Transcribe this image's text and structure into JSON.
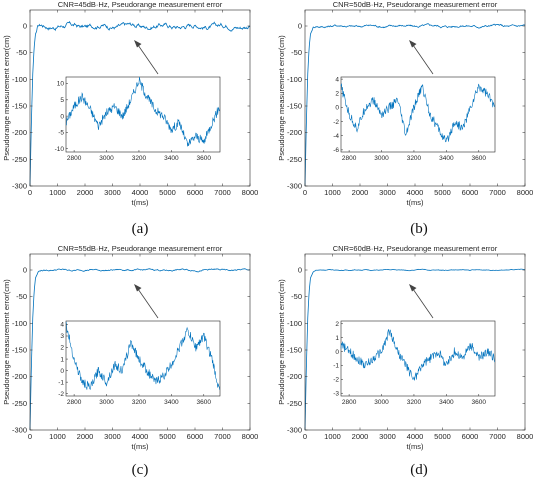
{
  "colors": {
    "series": "#0072BD",
    "axis": "#262626",
    "arrow": "#444444",
    "background": "#ffffff"
  },
  "panels": [
    {
      "caption": "(a)",
      "chart_data": {
        "type": "line",
        "title": "CNR=45dB·Hz, Pseudorange measurement error",
        "xlabel": "t(ms)",
        "ylabel": "Pseudorange measurement error(cm)",
        "xlim": [
          0,
          8000
        ],
        "ylim": [
          -300,
          30
        ],
        "xticks": [
          0,
          1000,
          2000,
          3000,
          4000,
          5000,
          6000,
          7000,
          8000
        ],
        "yticks": [
          -300,
          -250,
          -200,
          -150,
          -100,
          -50,
          0
        ],
        "grid": false,
        "transient": {
          "x": [
            0,
            50,
            100,
            150,
            200,
            300,
            400
          ],
          "y": [
            -300,
            -180,
            -90,
            -40,
            -15,
            -3,
            0
          ]
        },
        "steady_state_noise_amplitude_cm": 6,
        "inset": {
          "xlim": [
            2750,
            3700
          ],
          "ylim": [
            -11,
            12
          ],
          "xticks": [
            2800,
            3000,
            3200,
            3400,
            3600
          ],
          "yticks": [
            -10,
            -5,
            0,
            5,
            10
          ],
          "x": [
            2750,
            2800,
            2850,
            2900,
            2950,
            3000,
            3050,
            3100,
            3150,
            3200,
            3250,
            3300,
            3350,
            3400,
            3450,
            3500,
            3550,
            3600,
            3650,
            3700
          ],
          "y": [
            -2,
            3,
            6,
            2,
            -3,
            1,
            3,
            0,
            5,
            11,
            6,
            2,
            0,
            -4,
            -2,
            -9,
            -6,
            -8,
            -2,
            3
          ]
        }
      }
    },
    {
      "caption": "(b)",
      "chart_data": {
        "type": "line",
        "title": "CNR=50dB·Hz, Pseudorange measurement error",
        "xlabel": "t(ms)",
        "ylabel": "Pseudorange measurement error(cm)",
        "xlim": [
          0,
          8000
        ],
        "ylim": [
          -300,
          30
        ],
        "xticks": [
          0,
          1000,
          2000,
          3000,
          4000,
          5000,
          6000,
          7000,
          8000
        ],
        "yticks": [
          -300,
          -250,
          -200,
          -150,
          -100,
          -50,
          0
        ],
        "grid": false,
        "transient": {
          "x": [
            0,
            50,
            100,
            150,
            200,
            300,
            400
          ],
          "y": [
            -300,
            -180,
            -90,
            -40,
            -15,
            -3,
            0
          ]
        },
        "steady_state_noise_amplitude_cm": 3,
        "inset": {
          "xlim": [
            2750,
            3700
          ],
          "ylim": [
            -6.3,
            4.3
          ],
          "xticks": [
            2800,
            3000,
            3200,
            3400,
            3600
          ],
          "yticks": [
            -6,
            -4,
            -2,
            0,
            2,
            4
          ],
          "x": [
            2750,
            2800,
            2850,
            2900,
            2950,
            3000,
            3050,
            3100,
            3150,
            3200,
            3250,
            3300,
            3350,
            3400,
            3450,
            3500,
            3550,
            3600,
            3650,
            3700
          ],
          "y": [
            3,
            -1,
            -3,
            0,
            1,
            -1,
            0,
            1,
            -4,
            0,
            3,
            -1,
            -3,
            -5,
            -2,
            -3,
            0,
            3,
            2,
            0
          ]
        }
      }
    },
    {
      "caption": "(c)",
      "chart_data": {
        "type": "line",
        "title": "CNR=55dB·Hz, Pseudorange measurement error",
        "xlabel": "t(ms)",
        "ylabel": "Pseudorange measurement error(cm)",
        "xlim": [
          0,
          8000
        ],
        "ylim": [
          -300,
          30
        ],
        "xticks": [
          0,
          1000,
          2000,
          3000,
          4000,
          5000,
          6000,
          7000,
          8000
        ],
        "yticks": [
          -300,
          -250,
          -200,
          -150,
          -100,
          -50,
          0
        ],
        "grid": false,
        "transient": {
          "x": [
            0,
            50,
            100,
            150,
            200,
            300,
            400
          ],
          "y": [
            -300,
            -180,
            -90,
            -40,
            -15,
            -3,
            0
          ]
        },
        "steady_state_noise_amplitude_cm": 2,
        "inset": {
          "xlim": [
            2750,
            3700
          ],
          "ylim": [
            -2.2,
            4.3
          ],
          "xticks": [
            2800,
            3000,
            3200,
            3400,
            3600
          ],
          "yticks": [
            -2,
            -1,
            0,
            1,
            2,
            3,
            4
          ],
          "x": [
            2750,
            2800,
            2850,
            2900,
            2950,
            3000,
            3050,
            3100,
            3150,
            3200,
            3250,
            3300,
            3350,
            3400,
            3450,
            3500,
            3550,
            3600,
            3650,
            3700
          ],
          "y": [
            4,
            1,
            -1,
            -1.5,
            0,
            -1,
            0.5,
            0,
            2.5,
            1,
            0,
            -1,
            -0.5,
            0.5,
            2,
            3.5,
            2,
            3,
            1,
            -2
          ]
        }
      }
    },
    {
      "caption": "(d)",
      "chart_data": {
        "type": "line",
        "title": "CNR=60dB·Hz, Pseudorange measurement error",
        "xlabel": "t(ms)",
        "ylabel": "Pseudorange measurement error(cm)",
        "xlim": [
          0,
          8000
        ],
        "ylim": [
          -300,
          30
        ],
        "xticks": [
          0,
          1000,
          2000,
          3000,
          4000,
          5000,
          6000,
          7000,
          8000
        ],
        "yticks": [
          -300,
          -250,
          -200,
          -150,
          -100,
          -50,
          0
        ],
        "grid": false,
        "transient": {
          "x": [
            0,
            50,
            100,
            150,
            200,
            300,
            400
          ],
          "y": [
            -300,
            -180,
            -90,
            -40,
            -15,
            -3,
            0
          ]
        },
        "steady_state_noise_amplitude_cm": 1,
        "inset": {
          "xlim": [
            2750,
            3700
          ],
          "ylim": [
            -3.2,
            2.2
          ],
          "xticks": [
            2800,
            3000,
            3200,
            3400,
            3600
          ],
          "yticks": [
            -3,
            -2,
            -1,
            0,
            1,
            2
          ],
          "x": [
            2750,
            2800,
            2850,
            2900,
            2950,
            3000,
            3050,
            3100,
            3150,
            3200,
            3250,
            3300,
            3350,
            3400,
            3450,
            3500,
            3550,
            3600,
            3650,
            3700
          ],
          "y": [
            0.5,
            0,
            -0.5,
            -1,
            -0.5,
            0,
            1.5,
            0,
            -1,
            -2,
            -1,
            -0.5,
            0,
            -1,
            0,
            -0.5,
            0.5,
            -0.5,
            0,
            -0.5
          ]
        }
      }
    }
  ]
}
